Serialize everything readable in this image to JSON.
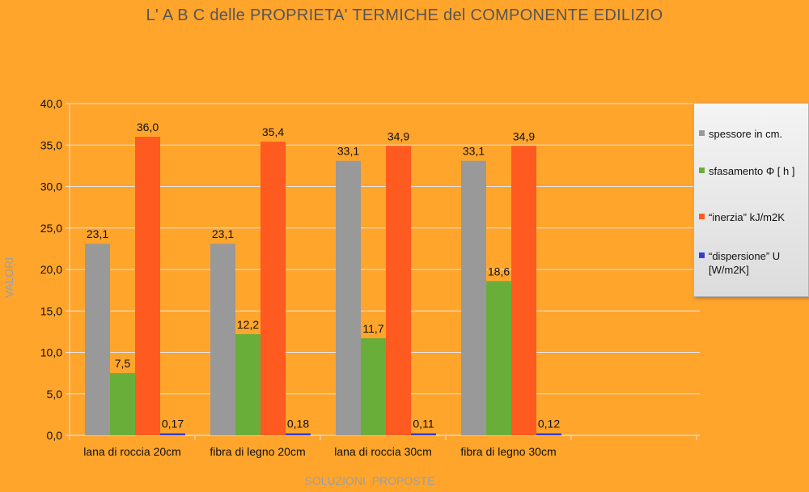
{
  "chart_data": {
    "type": "bar",
    "title": "L' A B C delle PROPRIETA' TERMICHE del COMPONENTE EDILIZIO",
    "xlabel": "SOLUZIONI  PROPOSTE",
    "ylabel": "VALORI",
    "ylim": [
      0,
      40
    ],
    "yticks": [
      "0,0",
      "5,0",
      "10,0",
      "15,0",
      "20,0",
      "25,0",
      "30,0",
      "35,0",
      "40,0"
    ],
    "grid": true,
    "legend_position": "right",
    "categories": [
      "lana di roccia 20cm",
      "fibra di legno 20cm",
      "lana di roccia 30cm",
      "fibra di legno 30cm"
    ],
    "series": [
      {
        "name": "spessore in cm.",
        "color": "#999999",
        "values": [
          23.1,
          23.1,
          33.1,
          33.1
        ],
        "labels": [
          "23,1",
          "23,1",
          "33,1",
          "33,1"
        ]
      },
      {
        "name": "sfasamento Φ [ h ]",
        "color": "#6AAE3A",
        "values": [
          7.5,
          12.2,
          11.7,
          18.6
        ],
        "labels": [
          "7,5",
          "12,2",
          "11,7",
          "18,6"
        ]
      },
      {
        "name": "“inerzia” kJ/m2K",
        "color": "#FF5A1F",
        "values": [
          36.0,
          35.4,
          34.9,
          34.9
        ],
        "labels": [
          "36,0",
          "35,4",
          "34,9",
          "34,9"
        ]
      },
      {
        "name": "“dispersione” U [W/m2K]",
        "color": "#2F3FD8",
        "values": [
          0.17,
          0.18,
          0.11,
          0.12
        ],
        "labels": [
          "0,17",
          "0,18",
          "0,11",
          "0,12"
        ]
      }
    ]
  }
}
